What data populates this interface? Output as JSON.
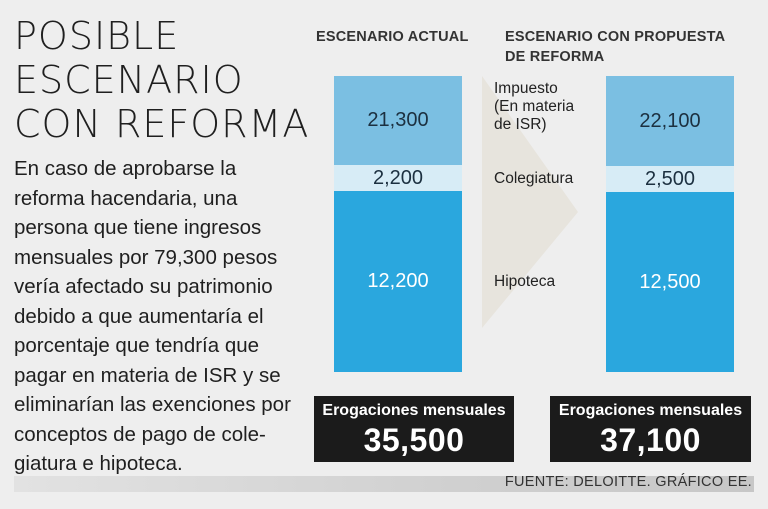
{
  "title_lines": [
    "POSIBLE",
    "ESCENARIO",
    "CON REFORMA"
  ],
  "description": "En caso de aprobarse la reforma hacendaria, una persona que tiene ingresos mensuales por 79,300 pesos vería afectado su patrimonio debido a que aumentaría el porcentaje que tendría que pagar en materia de ISR y se eliminarían las exenciones por conceptos de pago de cole-giatura e hipoteca.",
  "headers": {
    "left": "ESCENARIO ACTUAL",
    "right_lines": [
      "ESCENARIO CON PROPUESTA",
      "DE REFORMA"
    ]
  },
  "segment_labels": {
    "isr_lines": [
      "Impuesto",
      "(En materia",
      "de ISR)"
    ],
    "colegiatura": "Colegiatura",
    "hipoteca": "Hipoteca"
  },
  "totals": {
    "label": "Erogaciones mensuales",
    "left": "35,500",
    "right": "37,100"
  },
  "source": "FUENTE: DELOITTE. GRÁFICO EE.",
  "colors": {
    "isr": "#7bbfe2",
    "colegiatura": "#d7ecf6",
    "hipoteca": "#2aa7de",
    "arrow": "#e7e4dd",
    "total_box": "#1b1b1b"
  },
  "chart_data": {
    "type": "bar",
    "stacked": true,
    "categories": [
      "ESCENARIO ACTUAL",
      "ESCENARIO CON PROPUESTA DE REFORMA"
    ],
    "series": [
      {
        "name": "Impuesto (En materia de ISR)",
        "values": [
          21300,
          22100
        ],
        "labels": [
          "21,300",
          "22,100"
        ]
      },
      {
        "name": "Colegiatura",
        "values": [
          2200,
          2500
        ],
        "labels": [
          "2,200",
          "2,500"
        ]
      },
      {
        "name": "Hipoteca",
        "values": [
          12200,
          12500
        ],
        "labels": [
          "12,200",
          "12,500"
        ]
      }
    ],
    "totals": [
      35500,
      37100
    ]
  }
}
